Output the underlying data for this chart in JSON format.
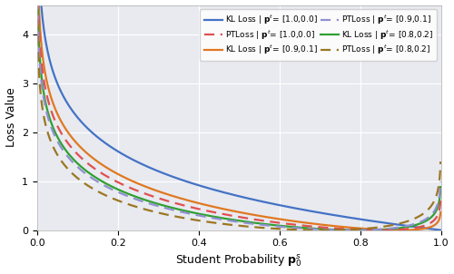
{
  "pt_configs": [
    {
      "pt": [
        1.0,
        0.0
      ],
      "kl_color": "#4472c4",
      "pt_color": "#e05050",
      "kl_label": "KL Loss | $\\mathbf{p}^t$= [1.0,0.0]",
      "pt_label": "PTLoss | $\\mathbf{p}^t$= [1.0,0.0]"
    },
    {
      "pt": [
        0.9,
        0.1
      ],
      "kl_color": "#e07820",
      "pt_color": "#9090d0",
      "kl_label": "KL Loss | $\\mathbf{p}^t$= [0.9,0.1]",
      "pt_label": "PTLoss | $\\mathbf{p}^t$= [0.9,0.1]"
    },
    {
      "pt": [
        0.8,
        0.2
      ],
      "kl_color": "#30a030",
      "pt_color": "#9B7722",
      "kl_label": "KL Loss | $\\mathbf{p}^t$= [0.8,0.2]",
      "pt_label": "PTLoss | $\\mathbf{p}^t$= [0.8,0.2]"
    }
  ],
  "xlabel": "Student Probability $\\mathbf{p}_0^s$",
  "ylabel": "Loss Value",
  "xlim": [
    0.0,
    1.0
  ],
  "ylim": [
    0.0,
    4.6
  ],
  "bg_color": "#e8eaf0",
  "line_width": 1.6,
  "figsize": [
    5.0,
    3.02
  ],
  "dpi": 100,
  "n_points": 1000,
  "eps": 0.001,
  "pt_alpha": 0.3
}
